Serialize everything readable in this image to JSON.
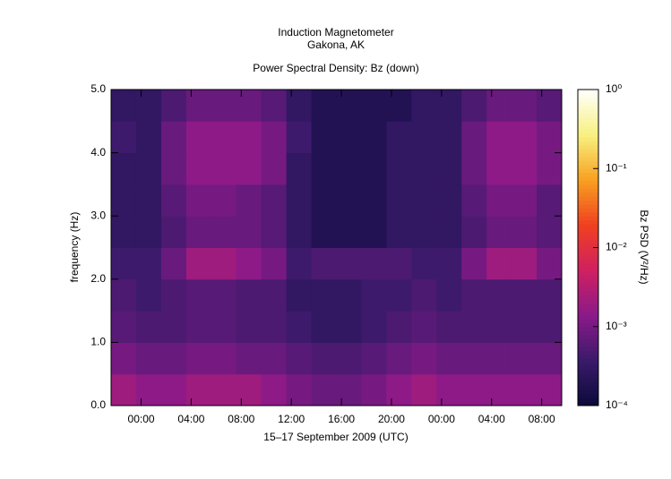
{
  "chart_data": {
    "type": "heatmap",
    "title": "Induction Magnetometer",
    "subtitle": "Gakona, AK",
    "plot_title": "Power Spectral Density: Bz (down)",
    "x_label": "15–17 September 2009 (UTC)",
    "y_label": "frequency (Hz)",
    "colorbar_label": "Bz PSD (V²/Hz)",
    "xlim": [
      -2.4,
      33.6
    ],
    "xticks": [
      {
        "value": 0,
        "label": "00:00"
      },
      {
        "value": 4,
        "label": "04:00"
      },
      {
        "value": 8,
        "label": "08:00"
      },
      {
        "value": 12,
        "label": "12:00"
      },
      {
        "value": 16,
        "label": "16:00"
      },
      {
        "value": 20,
        "label": "20:00"
      },
      {
        "value": 24,
        "label": "00:00"
      },
      {
        "value": 28,
        "label": "04:00"
      },
      {
        "value": 32,
        "label": "08:00"
      }
    ],
    "ylim": [
      0,
      5
    ],
    "yticks": [
      {
        "value": 0,
        "label": "0.0"
      },
      {
        "value": 1,
        "label": "1.0"
      },
      {
        "value": 2,
        "label": "2.0"
      },
      {
        "value": 3,
        "label": "3.0"
      },
      {
        "value": 4,
        "label": "4.0"
      },
      {
        "value": 5,
        "label": "5.0"
      }
    ],
    "zlim": [
      0.0001,
      1
    ],
    "zticks": [
      {
        "value": 0.0001,
        "label": "10⁻⁴"
      },
      {
        "value": 0.001,
        "label": "10⁻³"
      },
      {
        "value": 0.01,
        "label": "10⁻²"
      },
      {
        "value": 0.1,
        "label": "10⁻¹"
      },
      {
        "value": 1,
        "label": "10⁰"
      }
    ],
    "zlog": true,
    "colormap": [
      "#0a0a3a",
      "#3a1a6a",
      "#8a1a8a",
      "#d02060",
      "#f04020",
      "#f8a020",
      "#f8f080",
      "#ffffff"
    ],
    "xbins": [
      -2.4,
      -0.4,
      1.6,
      3.6,
      5.6,
      7.6,
      9.6,
      11.6,
      13.6,
      15.6,
      17.6,
      19.6,
      21.6,
      23.6,
      25.6,
      27.6,
      29.6,
      31.6,
      33.6
    ],
    "ybins": [
      0,
      0.5,
      1,
      1.5,
      2,
      2.5,
      3,
      3.5,
      4,
      4.5,
      5
    ],
    "values": [
      [
        0.002,
        0.0015,
        0.0015,
        0.002,
        0.002,
        0.002,
        0.0015,
        0.001,
        0.0008,
        0.0008,
        0.001,
        0.0015,
        0.002,
        0.0015,
        0.0015,
        0.0015,
        0.0015,
        0.0015
      ],
      [
        0.001,
        0.0008,
        0.0008,
        0.001,
        0.001,
        0.0008,
        0.0008,
        0.0006,
        0.0005,
        0.0005,
        0.0006,
        0.0008,
        0.001,
        0.0008,
        0.0008,
        0.0008,
        0.0008,
        0.0008
      ],
      [
        0.0006,
        0.0005,
        0.0005,
        0.0006,
        0.0006,
        0.0005,
        0.0005,
        0.0004,
        0.0003,
        0.0003,
        0.0004,
        0.0005,
        0.0006,
        0.0005,
        0.0005,
        0.0005,
        0.0005,
        0.0005
      ],
      [
        0.0005,
        0.0004,
        0.0005,
        0.0006,
        0.0006,
        0.0005,
        0.0005,
        0.0003,
        0.0003,
        0.0003,
        0.0004,
        0.0004,
        0.0005,
        0.0004,
        0.0005,
        0.0005,
        0.0005,
        0.0005
      ],
      [
        0.0004,
        0.0004,
        0.0008,
        0.002,
        0.002,
        0.0015,
        0.001,
        0.0004,
        0.0005,
        0.0005,
        0.0005,
        0.0005,
        0.0004,
        0.0004,
        0.001,
        0.002,
        0.002,
        0.001
      ],
      [
        0.0003,
        0.0003,
        0.0005,
        0.0008,
        0.0008,
        0.0008,
        0.0006,
        0.0003,
        0.0002,
        0.0002,
        0.0002,
        0.0003,
        0.0003,
        0.0003,
        0.0005,
        0.0008,
        0.0008,
        0.0006
      ],
      [
        0.0003,
        0.0003,
        0.0006,
        0.001,
        0.001,
        0.0008,
        0.0006,
        0.0003,
        0.0002,
        0.0002,
        0.0002,
        0.0003,
        0.0003,
        0.0003,
        0.0006,
        0.001,
        0.001,
        0.0006
      ],
      [
        0.0003,
        0.0003,
        0.0008,
        0.0015,
        0.0015,
        0.0015,
        0.001,
        0.0003,
        0.0002,
        0.0002,
        0.0002,
        0.0003,
        0.0003,
        0.0003,
        0.0008,
        0.0015,
        0.0015,
        0.001
      ],
      [
        0.0004,
        0.0003,
        0.0008,
        0.0015,
        0.0015,
        0.0015,
        0.001,
        0.0004,
        0.0002,
        0.0002,
        0.0002,
        0.0003,
        0.0003,
        0.0003,
        0.0008,
        0.0015,
        0.0015,
        0.001
      ],
      [
        0.0003,
        0.0003,
        0.0005,
        0.0008,
        0.0008,
        0.0008,
        0.0006,
        0.0003,
        0.0002,
        0.0002,
        0.0002,
        0.0002,
        0.0003,
        0.0003,
        0.0005,
        0.0008,
        0.0008,
        0.0006
      ]
    ]
  }
}
